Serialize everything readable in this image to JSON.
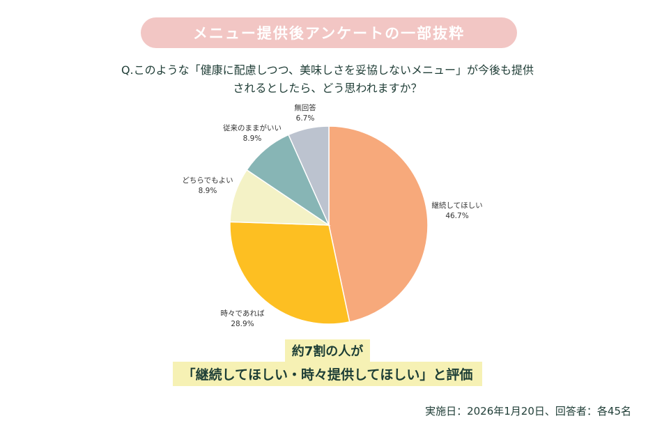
{
  "header": {
    "banner": "メニュー提供後アンケートの一部抜粋",
    "question_line1": "Q.このような「健康に配慮しつつ、美味しさを妥協しないメニュー」が今後も提供",
    "question_line2": "されるとしたら、どう思われますか？"
  },
  "chart_data": {
    "type": "pie",
    "start_angle_deg": 0,
    "direction": "clockwise",
    "slices": [
      {
        "label": "継続してほしい",
        "value": 46.7,
        "value_label": "46.7%",
        "color": "#f7a97b"
      },
      {
        "label": "時々であれば",
        "value": 28.9,
        "value_label": "28.9%",
        "color": "#fdbf22"
      },
      {
        "label": "どちらでもよい",
        "value": 8.9,
        "value_label": "8.9%",
        "color": "#f4f2c6"
      },
      {
        "label": "従来のままがいい",
        "value": 8.9,
        "value_label": "8.9%",
        "color": "#87b5b5"
      },
      {
        "label": "無回答",
        "value": 6.7,
        "value_label": "6.7%",
        "color": "#bcc3cf"
      }
    ]
  },
  "callout": {
    "line1": "約7割の人が",
    "line2": "「継続してほしい・時々提供してほしい」と評価"
  },
  "footnote": "実施日：2026年1月20日、回答者：各45名"
}
